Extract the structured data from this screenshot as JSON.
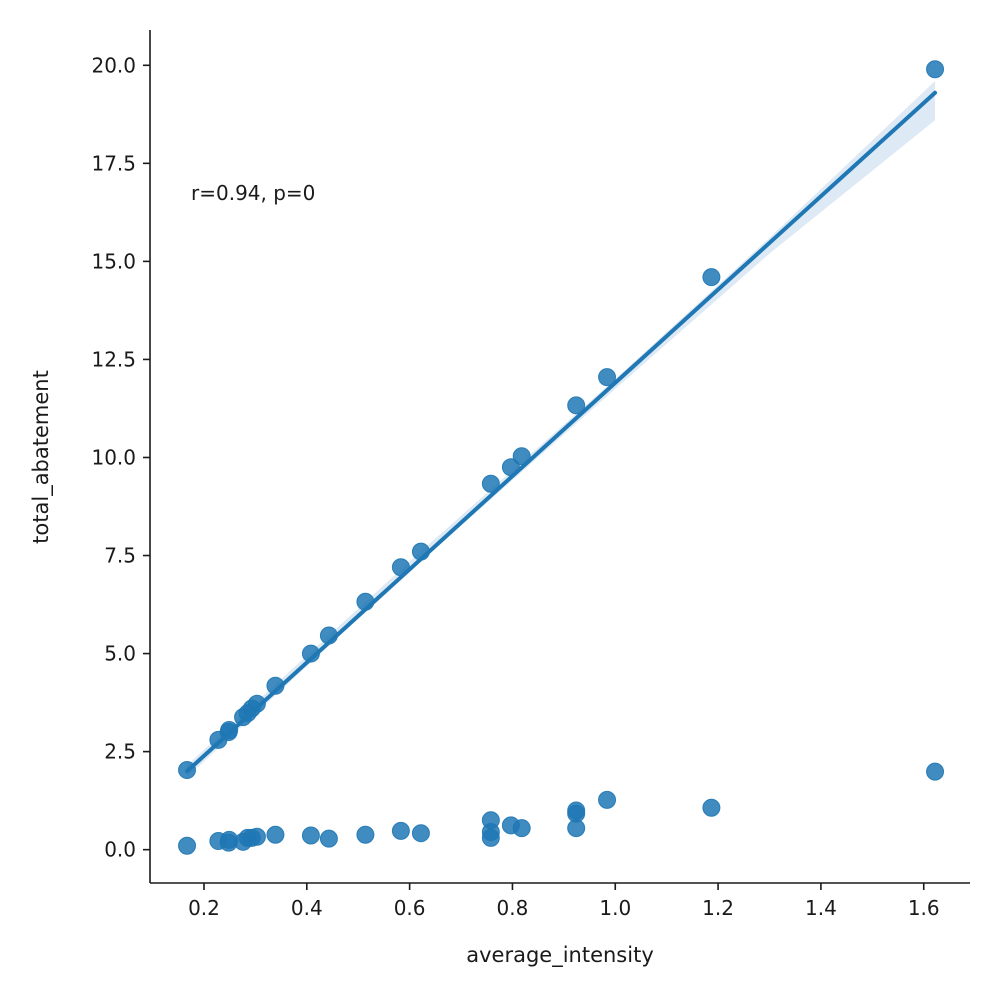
{
  "chart_data": {
    "type": "scatter",
    "xlabel": "average_intensity",
    "ylabel": "total_abatement",
    "xlim": [
      0.095,
      1.69
    ],
    "ylim": [
      -0.85,
      20.9
    ],
    "x_ticks": [
      0.2,
      0.4,
      0.6,
      0.8,
      1.0,
      1.2,
      1.4,
      1.6
    ],
    "x_tick_labels": [
      "0.2",
      "0.4",
      "0.6",
      "0.8",
      "1.0",
      "1.2",
      "1.4",
      "1.6"
    ],
    "y_ticks": [
      0,
      2.5,
      5,
      7.5,
      10,
      12.5,
      15,
      17.5,
      20
    ],
    "y_tick_labels": [
      "0.0",
      "2.5",
      "5.0",
      "7.5",
      "10.0",
      "12.5",
      "15.0",
      "17.5",
      "20.0"
    ],
    "grid": false,
    "annotation": "r=0.94, p=0",
    "colors": {
      "points": "#1f77b4",
      "line": "#1f77b4",
      "band": "#c6dbef"
    },
    "regression": {
      "x_start": 0.167,
      "x_end": 1.622,
      "y_start": 2.0,
      "y_end": 19.3,
      "band": [
        {
          "x": 0.167,
          "lower": 1.85,
          "upper": 2.15
        },
        {
          "x": 0.6,
          "lower": 7.1,
          "upper": 7.35
        },
        {
          "x": 1.0,
          "lower": 11.75,
          "upper": 12.0
        },
        {
          "x": 1.3,
          "lower": 15.2,
          "upper": 15.6
        },
        {
          "x": 1.622,
          "lower": 18.6,
          "upper": 19.6
        }
      ]
    },
    "series": [
      {
        "points": [
          [
            0.167,
            2.03
          ],
          [
            0.228,
            2.8
          ],
          [
            0.248,
            3.0
          ],
          [
            0.249,
            3.05
          ],
          [
            0.276,
            3.38
          ],
          [
            0.285,
            3.48
          ],
          [
            0.293,
            3.6
          ],
          [
            0.303,
            3.72
          ],
          [
            0.339,
            4.18
          ],
          [
            0.408,
            5.0
          ],
          [
            0.443,
            5.46
          ],
          [
            0.514,
            6.32
          ],
          [
            0.583,
            7.2
          ],
          [
            0.622,
            7.6
          ],
          [
            0.758,
            9.33
          ],
          [
            0.797,
            9.75
          ],
          [
            0.818,
            10.03
          ],
          [
            0.924,
            11.33
          ],
          [
            0.984,
            12.05
          ],
          [
            1.187,
            14.6
          ],
          [
            1.622,
            19.9
          ]
        ]
      },
      {
        "points": [
          [
            0.167,
            0.1
          ],
          [
            0.228,
            0.22
          ],
          [
            0.248,
            0.18
          ],
          [
            0.249,
            0.25
          ],
          [
            0.276,
            0.2
          ],
          [
            0.285,
            0.3
          ],
          [
            0.293,
            0.3
          ],
          [
            0.303,
            0.33
          ],
          [
            0.339,
            0.38
          ],
          [
            0.408,
            0.36
          ],
          [
            0.443,
            0.28
          ],
          [
            0.514,
            0.38
          ],
          [
            0.583,
            0.48
          ],
          [
            0.622,
            0.42
          ],
          [
            0.758,
            0.3
          ],
          [
            0.758,
            0.45
          ],
          [
            0.758,
            0.75
          ],
          [
            0.797,
            0.62
          ],
          [
            0.818,
            0.55
          ],
          [
            0.924,
            0.55
          ],
          [
            0.924,
            0.92
          ],
          [
            0.924,
            1.0
          ],
          [
            0.984,
            1.27
          ],
          [
            1.187,
            1.07
          ],
          [
            1.622,
            1.99
          ]
        ]
      }
    ]
  }
}
